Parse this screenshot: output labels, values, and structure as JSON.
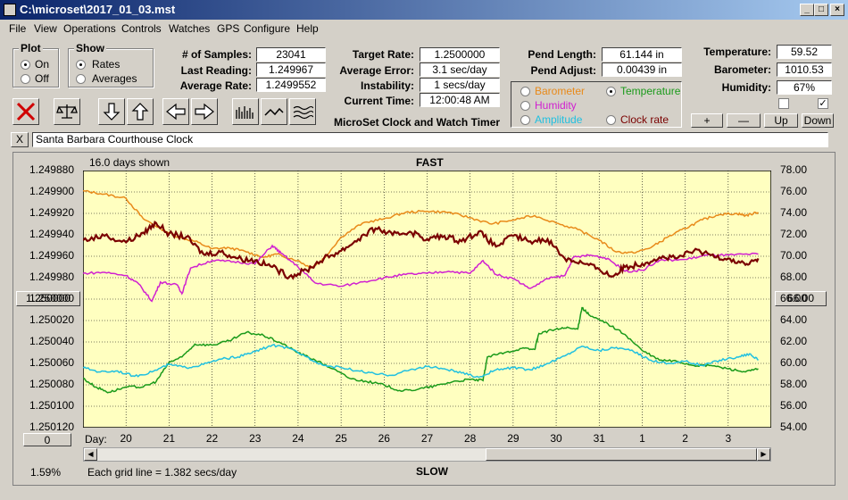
{
  "window": {
    "title": "C:\\microset\\2017_01_03.mst"
  },
  "menu": [
    "File",
    "View",
    "Operations",
    "Controls",
    "Watches",
    "GPS",
    "Configure",
    "Help"
  ],
  "plot": {
    "title": "Plot",
    "options": [
      "On",
      "Off"
    ],
    "selected": "On"
  },
  "show": {
    "title": "Show",
    "options": [
      "Rates",
      "Averages"
    ],
    "selected": "Rates"
  },
  "stats": {
    "samples_label": "# of Samples:",
    "samples": "23041",
    "last_label": "Last Reading:",
    "last": "1.249967",
    "avg_label": "Average Rate:",
    "avg": "1.2499552"
  },
  "rates": {
    "target_label": "Target Rate:",
    "target": "1.2500000",
    "err_label": "Average Error:",
    "err": "3.1 sec/day",
    "inst_label": "Instability:",
    "inst": "1 secs/day",
    "time_label": "Current Time:",
    "time": "12:00:48 AM"
  },
  "app_name": "MicroSet Clock and Watch Timer",
  "pend": {
    "len_label": "Pend Length:",
    "len": "61.144 in",
    "adj_label": "Pend Adjust:",
    "adj": "0.00439 in"
  },
  "sensor_select": {
    "options": [
      {
        "label": "Barometer",
        "color": "#e88a1a",
        "on": false
      },
      {
        "label": "Temperature",
        "color": "#1a9a1a",
        "on": true
      },
      {
        "label": "Humidity",
        "color": "#d020d0",
        "on": false
      },
      {
        "label": "Clock rate",
        "color": "#7a0000",
        "on": false
      },
      {
        "label": "Amplitude",
        "color": "#20c0e0",
        "on": false
      }
    ]
  },
  "env": {
    "temp_label": "Temperature:",
    "temp": "59.52",
    "baro_label": "Barometer:",
    "baro": "1010.53",
    "hum_label": "Humidity:",
    "hum": "67%"
  },
  "env_buttons": [
    "+",
    "—",
    "Up",
    "Down"
  ],
  "watch_name": "Santa Barbara Courthouse Clock",
  "close_glyph": "X",
  "chart_header": {
    "days_shown": "16.0 days shown",
    "fast": "FAST",
    "slow": "SLOW",
    "grid_note": "Each grid line = 1.382 secs/day",
    "percent": "1.59%"
  },
  "left_center_btn": "1.250000",
  "right_center_btn": "66.00",
  "zero_btn": "0",
  "chart_data": {
    "type": "line",
    "x_label": "Day:",
    "x_ticks": [
      "20",
      "21",
      "22",
      "23",
      "24",
      "25",
      "26",
      "27",
      "28",
      "29",
      "30",
      "31",
      "1",
      "2",
      "3"
    ],
    "y_left_ticks": [
      "1.249880",
      "1.249900",
      "1.249920",
      "1.249940",
      "1.249960",
      "1.249980",
      "1.250000",
      "1.250020",
      "1.250040",
      "1.250060",
      "1.250080",
      "1.250100",
      "1.250120"
    ],
    "y_left_range": [
      1.24988,
      1.25012
    ],
    "y_right_ticks": [
      "78.00",
      "76.00",
      "74.00",
      "72.00",
      "70.00",
      "68.00",
      "66.00",
      "64.00",
      "62.00",
      "60.00",
      "58.00",
      "56.00",
      "54.00"
    ],
    "y_right_range": [
      54,
      78
    ],
    "x_range": [
      19.0,
      35.0
    ],
    "series": [
      {
        "color": "#e88a1a",
        "points": [
          [
            19,
            76.1
          ],
          [
            19.5,
            75.8
          ],
          [
            20,
            75.4
          ],
          [
            20.4,
            73.5
          ],
          [
            20.8,
            72.6
          ],
          [
            21.2,
            71.8
          ],
          [
            21.6,
            71.4
          ],
          [
            22,
            70.7
          ],
          [
            22.4,
            70.8
          ],
          [
            22.8,
            70.4
          ],
          [
            23.2,
            69.9
          ],
          [
            23.5,
            70.2
          ],
          [
            24,
            69.6
          ],
          [
            24.3,
            68.9
          ],
          [
            24.6,
            69.8
          ],
          [
            25,
            71.8
          ],
          [
            25.5,
            73.1
          ],
          [
            26,
            73.5
          ],
          [
            26.5,
            74.1
          ],
          [
            27,
            74.2
          ],
          [
            27.5,
            74.1
          ],
          [
            28,
            73.6
          ],
          [
            28.5,
            73.0
          ],
          [
            29,
            73.4
          ],
          [
            29.5,
            73.8
          ],
          [
            30,
            73.1
          ],
          [
            30.5,
            72.5
          ],
          [
            31,
            71.5
          ],
          [
            31.4,
            70.4
          ],
          [
            31.8,
            70.3
          ],
          [
            32.2,
            70.8
          ],
          [
            32.6,
            71.8
          ],
          [
            33,
            72.6
          ],
          [
            33.4,
            73.4
          ],
          [
            33.8,
            73.9
          ],
          [
            34.2,
            74.0
          ],
          [
            34.4,
            73.8
          ],
          [
            34.7,
            74.1
          ]
        ]
      },
      {
        "color": "#d020d0",
        "points": [
          [
            19,
            68.4
          ],
          [
            19.5,
            68.5
          ],
          [
            20,
            68.2
          ],
          [
            20.3,
            67.4
          ],
          [
            20.6,
            65.8
          ],
          [
            20.8,
            67.6
          ],
          [
            21.2,
            67.3
          ],
          [
            21.3,
            66.5
          ],
          [
            21.5,
            68.9
          ],
          [
            22,
            69.6
          ],
          [
            22.5,
            69.5
          ],
          [
            23,
            69.3
          ],
          [
            23.4,
            71.0
          ],
          [
            23.6,
            70.3
          ],
          [
            24,
            69.0
          ],
          [
            24.4,
            67.5
          ],
          [
            25,
            67.2
          ],
          [
            25.5,
            67.6
          ],
          [
            26,
            68.0
          ],
          [
            26.5,
            68.3
          ],
          [
            27,
            68.4
          ],
          [
            27.5,
            68.6
          ],
          [
            28,
            68.4
          ],
          [
            28.3,
            69.6
          ],
          [
            28.6,
            68.3
          ],
          [
            29,
            67.9
          ],
          [
            29.4,
            67.0
          ],
          [
            29.8,
            67.9
          ],
          [
            30.2,
            68.2
          ],
          [
            30.4,
            69.9
          ],
          [
            30.8,
            70.1
          ],
          [
            31.2,
            69.8
          ],
          [
            31.6,
            68.6
          ],
          [
            32,
            68.7
          ],
          [
            32.4,
            69.6
          ],
          [
            33,
            69.7
          ],
          [
            33.5,
            70.1
          ],
          [
            34,
            70.1
          ],
          [
            34.7,
            70.2
          ]
        ]
      },
      {
        "color": "#7a0000",
        "points": [
          [
            19,
            71.5
          ],
          [
            19.5,
            71.9
          ],
          [
            20,
            71.3
          ],
          [
            20.4,
            72.2
          ],
          [
            20.7,
            73.1
          ],
          [
            21,
            72.1
          ],
          [
            21.4,
            71.8
          ],
          [
            21.8,
            70.2
          ],
          [
            22.2,
            70.4
          ],
          [
            22.6,
            69.8
          ],
          [
            23,
            69.6
          ],
          [
            23.4,
            69.0
          ],
          [
            23.8,
            68.1
          ],
          [
            24.2,
            68.7
          ],
          [
            24.6,
            69.8
          ],
          [
            25,
            70.5
          ],
          [
            25.4,
            71.6
          ],
          [
            25.8,
            72.6
          ],
          [
            26.2,
            72.0
          ],
          [
            26.6,
            72.3
          ],
          [
            27,
            71.6
          ],
          [
            27.4,
            71.9
          ],
          [
            27.8,
            71.4
          ],
          [
            28.2,
            72.3
          ],
          [
            28.6,
            70.9
          ],
          [
            29,
            71.9
          ],
          [
            29.4,
            71.4
          ],
          [
            29.8,
            71.6
          ],
          [
            30.2,
            69.8
          ],
          [
            30.6,
            69.4
          ],
          [
            31,
            68.8
          ],
          [
            31.3,
            68.1
          ],
          [
            31.6,
            69.0
          ],
          [
            32,
            69.3
          ],
          [
            32.4,
            69.9
          ],
          [
            32.8,
            69.8
          ],
          [
            33.2,
            70.5
          ],
          [
            33.6,
            70.1
          ],
          [
            34,
            69.8
          ],
          [
            34.4,
            69.2
          ],
          [
            34.7,
            69.8
          ]
        ]
      },
      {
        "color": "#1a9a1a",
        "points": [
          [
            19,
            58.6
          ],
          [
            19.3,
            57.8
          ],
          [
            19.6,
            57.3
          ],
          [
            20,
            57.8
          ],
          [
            20.4,
            57.8
          ],
          [
            20.7,
            58.3
          ],
          [
            21,
            60.1
          ],
          [
            21.3,
            60.6
          ],
          [
            21.6,
            61.8
          ],
          [
            22,
            61.7
          ],
          [
            22.4,
            62.1
          ],
          [
            22.8,
            62.9
          ],
          [
            23.2,
            62.6
          ],
          [
            23.6,
            61.9
          ],
          [
            24,
            61.0
          ],
          [
            24.4,
            60.3
          ],
          [
            24.8,
            59.5
          ],
          [
            25.2,
            58.6
          ],
          [
            25.6,
            58.3
          ],
          [
            26,
            58.0
          ],
          [
            26.4,
            57.4
          ],
          [
            26.8,
            57.6
          ],
          [
            27.2,
            57.9
          ],
          [
            27.6,
            58.3
          ],
          [
            28,
            58.5
          ],
          [
            28.3,
            58.4
          ],
          [
            28.4,
            60.6
          ],
          [
            28.8,
            61.0
          ],
          [
            29.2,
            61.4
          ],
          [
            29.5,
            61.3
          ],
          [
            29.6,
            62.8
          ],
          [
            29.9,
            63.1
          ],
          [
            30.2,
            63.3
          ],
          [
            30.5,
            63.2
          ],
          [
            30.6,
            65.2
          ],
          [
            30.8,
            64.4
          ],
          [
            31.2,
            63.7
          ],
          [
            31.6,
            62.7
          ],
          [
            32,
            61.2
          ],
          [
            32.4,
            60.3
          ],
          [
            32.8,
            60.2
          ],
          [
            33.2,
            59.8
          ],
          [
            33.6,
            59.8
          ],
          [
            34,
            59.5
          ],
          [
            34.4,
            59.2
          ],
          [
            34.7,
            59.5
          ]
        ]
      },
      {
        "color": "#20c0e0",
        "points": [
          [
            19,
            59.6
          ],
          [
            19.4,
            59.2
          ],
          [
            19.8,
            59.3
          ],
          [
            20.2,
            58.8
          ],
          [
            20.6,
            59.2
          ],
          [
            21,
            59.9
          ],
          [
            21.4,
            59.6
          ],
          [
            21.8,
            59.9
          ],
          [
            22.2,
            60.4
          ],
          [
            22.6,
            60.6
          ],
          [
            23,
            61.1
          ],
          [
            23.4,
            61.7
          ],
          [
            23.8,
            61.4
          ],
          [
            24.2,
            60.6
          ],
          [
            24.6,
            59.8
          ],
          [
            25,
            59.6
          ],
          [
            25.4,
            59.3
          ],
          [
            25.8,
            59.0
          ],
          [
            26.2,
            58.9
          ],
          [
            26.6,
            59.4
          ],
          [
            27,
            59.7
          ],
          [
            27.4,
            59.5
          ],
          [
            27.8,
            59.1
          ],
          [
            28.2,
            58.7
          ],
          [
            28.6,
            59.4
          ],
          [
            29,
            59.6
          ],
          [
            29.4,
            59.4
          ],
          [
            29.8,
            60.0
          ],
          [
            30.2,
            60.7
          ],
          [
            30.6,
            61.6
          ],
          [
            31,
            61.2
          ],
          [
            31.4,
            61.5
          ],
          [
            31.8,
            61.1
          ],
          [
            32.2,
            60.3
          ],
          [
            32.6,
            60.0
          ],
          [
            33,
            60.2
          ],
          [
            33.4,
            59.8
          ],
          [
            33.8,
            60.3
          ],
          [
            34.2,
            60.6
          ],
          [
            34.5,
            60.9
          ],
          [
            34.7,
            60.3
          ]
        ]
      }
    ]
  }
}
